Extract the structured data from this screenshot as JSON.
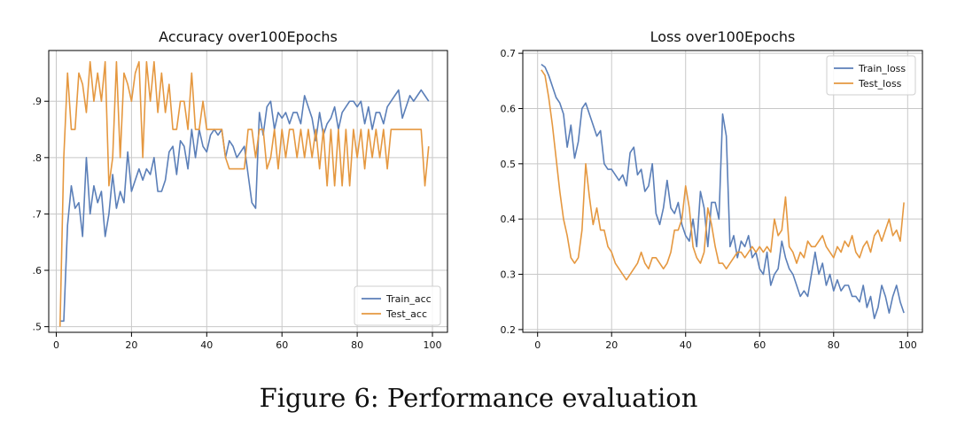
{
  "caption": "Figure 6: Performance evaluation",
  "colors": {
    "train": "#5b7fb8",
    "test": "#e59840",
    "grid": "#c8c8c8",
    "axis": "#000000"
  },
  "chart_data": [
    {
      "type": "line",
      "title": "Accuracy over100Epochs",
      "xlabel": "",
      "ylabel": "",
      "xlim": [
        -2,
        104
      ],
      "ylim": [
        0.49,
        0.99
      ],
      "xticks": [
        0,
        20,
        40,
        60,
        80,
        100
      ],
      "xtick_labels": [
        "0",
        "20",
        "40",
        "60",
        "80",
        "100"
      ],
      "yticks": [
        0.5,
        0.6,
        0.7,
        0.8,
        0.9
      ],
      "ytick_labels": [
        ".5",
        ".6",
        ".7",
        ".8",
        ".9"
      ],
      "grid": true,
      "legend": "lower right",
      "x": [
        1,
        2,
        3,
        4,
        5,
        6,
        7,
        8,
        9,
        10,
        11,
        12,
        13,
        14,
        15,
        16,
        17,
        18,
        19,
        20,
        21,
        22,
        23,
        24,
        25,
        26,
        27,
        28,
        29,
        30,
        31,
        32,
        33,
        34,
        35,
        36,
        37,
        38,
        39,
        40,
        41,
        42,
        43,
        44,
        45,
        46,
        47,
        48,
        49,
        50,
        51,
        52,
        53,
        54,
        55,
        56,
        57,
        58,
        59,
        60,
        61,
        62,
        63,
        64,
        65,
        66,
        67,
        68,
        69,
        70,
        71,
        72,
        73,
        74,
        75,
        76,
        77,
        78,
        79,
        80,
        81,
        82,
        83,
        84,
        85,
        86,
        87,
        88,
        89,
        90,
        91,
        92,
        93,
        94,
        95,
        96,
        97,
        98,
        99
      ],
      "series": [
        {
          "name": "Train_acc",
          "values": [
            0.51,
            0.51,
            0.68,
            0.75,
            0.71,
            0.72,
            0.66,
            0.8,
            0.7,
            0.75,
            0.72,
            0.74,
            0.66,
            0.7,
            0.77,
            0.71,
            0.74,
            0.72,
            0.81,
            0.74,
            0.76,
            0.78,
            0.76,
            0.78,
            0.77,
            0.8,
            0.74,
            0.74,
            0.76,
            0.81,
            0.82,
            0.77,
            0.83,
            0.82,
            0.78,
            0.85,
            0.8,
            0.85,
            0.82,
            0.81,
            0.84,
            0.85,
            0.84,
            0.85,
            0.8,
            0.83,
            0.82,
            0.8,
            0.81,
            0.82,
            0.77,
            0.72,
            0.71,
            0.88,
            0.84,
            0.89,
            0.9,
            0.85,
            0.88,
            0.87,
            0.88,
            0.86,
            0.88,
            0.88,
            0.86,
            0.91,
            0.89,
            0.87,
            0.83,
            0.88,
            0.84,
            0.86,
            0.87,
            0.89,
            0.85,
            0.88,
            0.89,
            0.9,
            0.9,
            0.89,
            0.9,
            0.86,
            0.89,
            0.85,
            0.88,
            0.88,
            0.86,
            0.89,
            0.9,
            0.91,
            0.92,
            0.87,
            0.89,
            0.91,
            0.9,
            0.91,
            0.92,
            0.91,
            0.9
          ]
        },
        {
          "name": "Test_acc",
          "values": [
            0.5,
            0.8,
            0.95,
            0.85,
            0.85,
            0.95,
            0.93,
            0.88,
            0.97,
            0.9,
            0.95,
            0.9,
            0.97,
            0.75,
            0.8,
            0.97,
            0.8,
            0.95,
            0.93,
            0.9,
            0.95,
            0.97,
            0.8,
            0.97,
            0.9,
            0.97,
            0.88,
            0.95,
            0.88,
            0.93,
            0.85,
            0.85,
            0.9,
            0.9,
            0.85,
            0.95,
            0.85,
            0.85,
            0.9,
            0.85,
            0.85,
            0.85,
            0.85,
            0.85,
            0.8,
            0.78,
            0.78,
            0.78,
            0.78,
            0.78,
            0.85,
            0.85,
            0.8,
            0.85,
            0.85,
            0.78,
            0.8,
            0.85,
            0.78,
            0.85,
            0.8,
            0.85,
            0.85,
            0.8,
            0.85,
            0.8,
            0.85,
            0.8,
            0.85,
            0.78,
            0.85,
            0.75,
            0.85,
            0.75,
            0.85,
            0.75,
            0.85,
            0.75,
            0.85,
            0.8,
            0.85,
            0.78,
            0.85,
            0.8,
            0.85,
            0.8,
            0.85,
            0.78,
            0.85,
            0.85,
            0.85,
            0.85,
            0.85,
            0.85,
            0.85,
            0.85,
            0.85,
            0.75,
            0.82
          ]
        }
      ]
    },
    {
      "type": "line",
      "title": "Loss over100Epochs",
      "xlabel": "",
      "ylabel": "",
      "xlim": [
        -4,
        104
      ],
      "ylim": [
        0.195,
        0.705
      ],
      "xticks": [
        0,
        20,
        40,
        60,
        80,
        100
      ],
      "xtick_labels": [
        "0",
        "20",
        "40",
        "60",
        "80",
        "100"
      ],
      "yticks": [
        0.2,
        0.3,
        0.4,
        0.5,
        0.6,
        0.7
      ],
      "ytick_labels": [
        "0.2",
        "0.3",
        "0.4",
        "0.5",
        "0.6",
        "0.7"
      ],
      "grid": true,
      "legend": "upper right",
      "x": [
        1,
        2,
        3,
        4,
        5,
        6,
        7,
        8,
        9,
        10,
        11,
        12,
        13,
        14,
        15,
        16,
        17,
        18,
        19,
        20,
        21,
        22,
        23,
        24,
        25,
        26,
        27,
        28,
        29,
        30,
        31,
        32,
        33,
        34,
        35,
        36,
        37,
        38,
        39,
        40,
        41,
        42,
        43,
        44,
        45,
        46,
        47,
        48,
        49,
        50,
        51,
        52,
        53,
        54,
        55,
        56,
        57,
        58,
        59,
        60,
        61,
        62,
        63,
        64,
        65,
        66,
        67,
        68,
        69,
        70,
        71,
        72,
        73,
        74,
        75,
        76,
        77,
        78,
        79,
        80,
        81,
        82,
        83,
        84,
        85,
        86,
        87,
        88,
        89,
        90,
        91,
        92,
        93,
        94,
        95,
        96,
        97,
        98,
        99
      ],
      "series": [
        {
          "name": "Train_loss",
          "values": [
            0.68,
            0.675,
            0.66,
            0.64,
            0.62,
            0.61,
            0.59,
            0.53,
            0.57,
            0.51,
            0.54,
            0.6,
            0.61,
            0.59,
            0.57,
            0.55,
            0.56,
            0.5,
            0.49,
            0.49,
            0.48,
            0.47,
            0.48,
            0.46,
            0.52,
            0.53,
            0.48,
            0.49,
            0.45,
            0.46,
            0.5,
            0.41,
            0.39,
            0.42,
            0.47,
            0.42,
            0.41,
            0.43,
            0.39,
            0.37,
            0.36,
            0.4,
            0.35,
            0.45,
            0.42,
            0.35,
            0.43,
            0.43,
            0.4,
            0.59,
            0.55,
            0.35,
            0.37,
            0.33,
            0.36,
            0.35,
            0.37,
            0.33,
            0.34,
            0.31,
            0.3,
            0.34,
            0.28,
            0.3,
            0.31,
            0.36,
            0.33,
            0.31,
            0.3,
            0.28,
            0.26,
            0.27,
            0.26,
            0.3,
            0.34,
            0.3,
            0.32,
            0.28,
            0.3,
            0.27,
            0.29,
            0.27,
            0.28,
            0.28,
            0.26,
            0.26,
            0.25,
            0.28,
            0.24,
            0.26,
            0.22,
            0.24,
            0.28,
            0.26,
            0.23,
            0.26,
            0.28,
            0.25,
            0.23
          ]
        },
        {
          "name": "Test_loss",
          "values": [
            0.67,
            0.66,
            0.62,
            0.57,
            0.51,
            0.45,
            0.4,
            0.37,
            0.33,
            0.32,
            0.33,
            0.38,
            0.5,
            0.44,
            0.39,
            0.42,
            0.38,
            0.38,
            0.35,
            0.34,
            0.32,
            0.31,
            0.3,
            0.29,
            0.3,
            0.31,
            0.32,
            0.34,
            0.32,
            0.31,
            0.33,
            0.33,
            0.32,
            0.31,
            0.32,
            0.34,
            0.38,
            0.38,
            0.4,
            0.46,
            0.42,
            0.35,
            0.33,
            0.32,
            0.34,
            0.42,
            0.39,
            0.35,
            0.32,
            0.32,
            0.31,
            0.32,
            0.33,
            0.34,
            0.34,
            0.33,
            0.34,
            0.35,
            0.34,
            0.35,
            0.34,
            0.35,
            0.34,
            0.4,
            0.37,
            0.38,
            0.44,
            0.35,
            0.34,
            0.32,
            0.34,
            0.33,
            0.36,
            0.35,
            0.35,
            0.36,
            0.37,
            0.35,
            0.34,
            0.33,
            0.35,
            0.34,
            0.36,
            0.35,
            0.37,
            0.34,
            0.33,
            0.35,
            0.36,
            0.34,
            0.37,
            0.38,
            0.36,
            0.38,
            0.4,
            0.37,
            0.38,
            0.36,
            0.43
          ]
        }
      ]
    }
  ]
}
